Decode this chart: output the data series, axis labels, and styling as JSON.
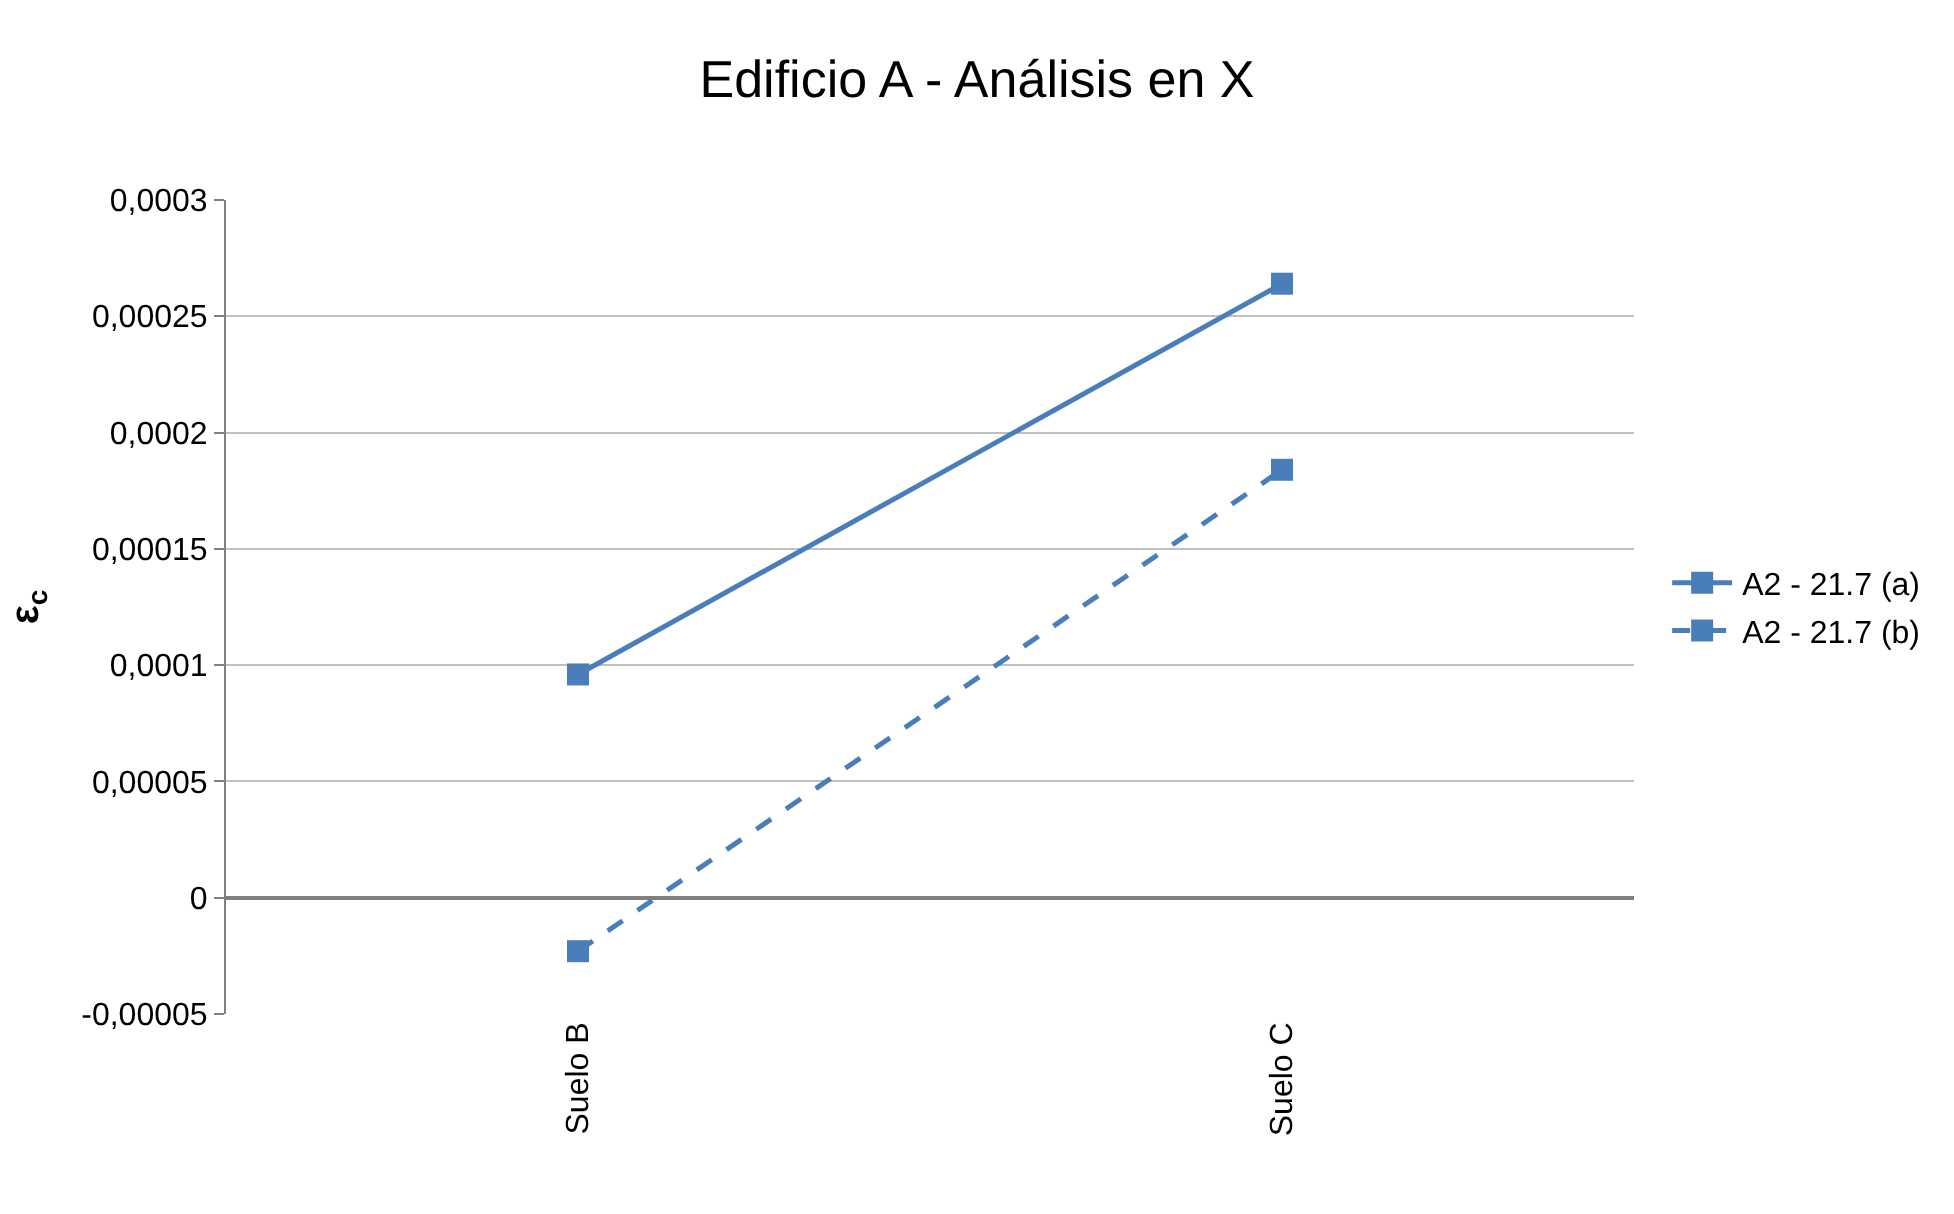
{
  "chart_data": {
    "type": "line",
    "title": "Edificio A - Análisis en X",
    "ylabel": "ε$_{c}$",
    "categories": [
      "Suelo B",
      "Suelo C"
    ],
    "series": [
      {
        "name": "A2 - 21.7 (a)",
        "color": "#4a7ebb",
        "values": [
          9.6e-05,
          0.000264
        ],
        "line_style": "solid"
      },
      {
        "name": "A2 - 21.7 (b)",
        "color": "#4a7ebb",
        "values": [
          -2.3e-05,
          0.000184
        ],
        "line_style": "dashed"
      }
    ],
    "ylim": [
      -5e-05,
      0.0003
    ],
    "yticks": [
      {
        "value": -5e-05,
        "label": "-0,00005"
      },
      {
        "value": 0,
        "label": "0"
      },
      {
        "value": 5e-05,
        "label": "0,00005"
      },
      {
        "value": 0.0001,
        "label": "0,0001"
      },
      {
        "value": 0.00015,
        "label": "0,00015"
      },
      {
        "value": 0.0002,
        "label": "0,0002"
      },
      {
        "value": 0.00025,
        "label": "0,00025"
      },
      {
        "value": 0.0003,
        "label": "0,0003"
      }
    ],
    "grid": "y",
    "legend": "right",
    "marker": "square"
  }
}
